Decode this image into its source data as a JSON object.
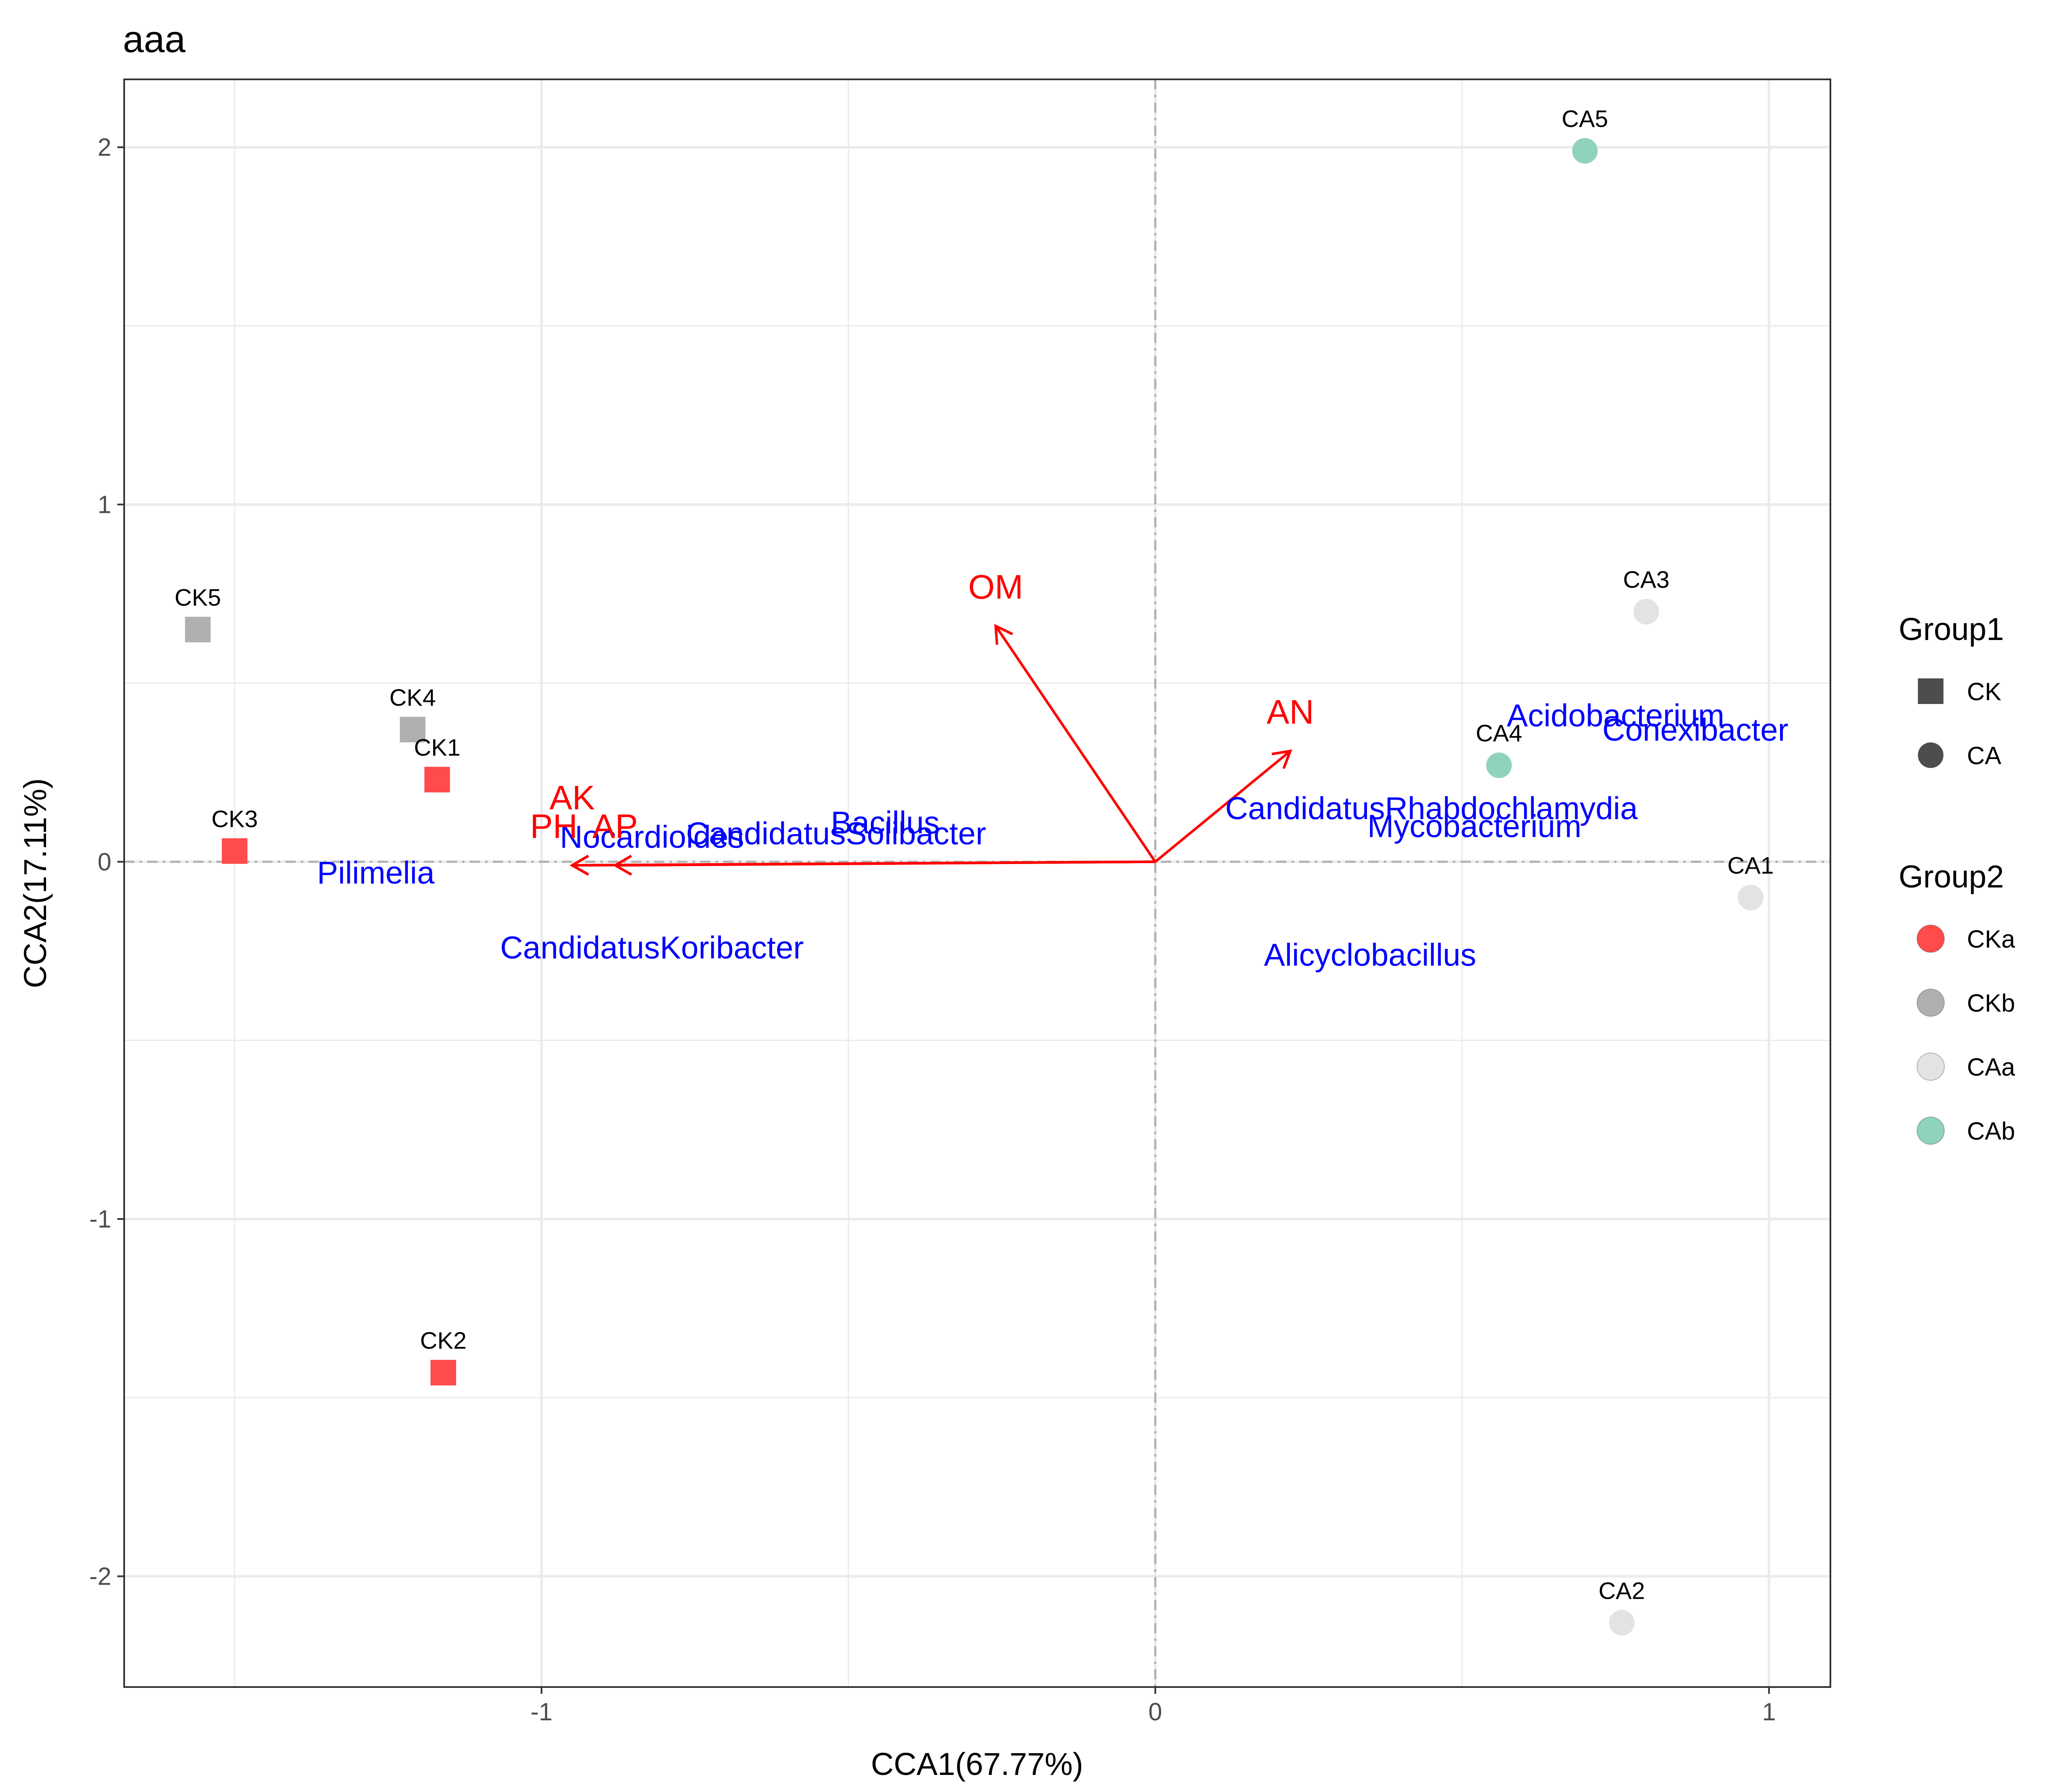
{
  "chart_data": {
    "type": "scatter",
    "title": "aaa",
    "xlabel": "CCA1(67.77%)",
    "ylabel": "CCA2(17.11%)",
    "xlim": [
      -1.68,
      1.1
    ],
    "ylim": [
      -2.31,
      2.19
    ],
    "xticks": [
      -1,
      0,
      1
    ],
    "xtick_labels": [
      "-1",
      "0",
      "1"
    ],
    "yticks": [
      -2,
      -1,
      0,
      1,
      2
    ],
    "ytick_labels": [
      "-2",
      "-1",
      "0",
      "1",
      "2"
    ],
    "grid": true,
    "reference_lines": {
      "x": 0,
      "y": 0,
      "style": "dashed"
    },
    "legend_placement": "right",
    "legends": [
      {
        "title": "Group1",
        "kind": "shape",
        "entries": [
          {
            "label": "CK",
            "shape": "square"
          },
          {
            "label": "CA",
            "shape": "circle"
          }
        ]
      },
      {
        "title": "Group2",
        "kind": "color",
        "entries": [
          {
            "label": "CKa",
            "color": "#ff4b4b"
          },
          {
            "label": "CKb",
            "color": "#b0b0b0"
          },
          {
            "label": "CAa",
            "color": "#e3e3e3"
          },
          {
            "label": "CAb",
            "color": "#8fd3bf"
          }
        ]
      }
    ],
    "sites": [
      {
        "label": "CK5",
        "x": -1.56,
        "y": 0.65,
        "group1": "CK",
        "group2": "CKb"
      },
      {
        "label": "CK4",
        "x": -1.21,
        "y": 0.37,
        "group1": "CK",
        "group2": "CKb"
      },
      {
        "label": "CK1",
        "x": -1.17,
        "y": 0.23,
        "group1": "CK",
        "group2": "CKa"
      },
      {
        "label": "CK3",
        "x": -1.5,
        "y": 0.03,
        "group1": "CK",
        "group2": "CKa"
      },
      {
        "label": "CK2",
        "x": -1.16,
        "y": -1.43,
        "group1": "CK",
        "group2": "CKa"
      },
      {
        "label": "CA5",
        "x": 0.7,
        "y": 1.99,
        "group1": "CA",
        "group2": "CAb"
      },
      {
        "label": "CA3",
        "x": 0.8,
        "y": 0.7,
        "group1": "CA",
        "group2": "CAa"
      },
      {
        "label": "CA4",
        "x": 0.56,
        "y": 0.27,
        "group1": "CA",
        "group2": "CAb"
      },
      {
        "label": "CA1",
        "x": 0.97,
        "y": -0.1,
        "group1": "CA",
        "group2": "CAa"
      },
      {
        "label": "CA2",
        "x": 0.76,
        "y": -2.13,
        "group1": "CA",
        "group2": "CAa"
      }
    ],
    "species": [
      {
        "label": "Acidobacterium",
        "x": 0.75,
        "y": 0.41
      },
      {
        "label": "Conexibacter",
        "x": 0.88,
        "y": 0.37
      },
      {
        "label": "CandidatusRhabdochlamydia",
        "x": 0.45,
        "y": 0.15
      },
      {
        "label": "Mycobacterium",
        "x": 0.52,
        "y": 0.1
      },
      {
        "label": "Bacillus",
        "x": -0.44,
        "y": 0.11
      },
      {
        "label": "CandidatusSolibacter",
        "x": -0.52,
        "y": 0.08
      },
      {
        "label": "Nocardioides",
        "x": -0.82,
        "y": 0.07
      },
      {
        "label": "Pilimelia",
        "x": -1.27,
        "y": -0.03
      },
      {
        "label": "CandidatusKoribacter",
        "x": -0.82,
        "y": -0.24
      },
      {
        "label": "Alicyclobacillus",
        "x": 0.35,
        "y": -0.26
      }
    ],
    "env_vectors": [
      {
        "label": "OM",
        "x": -0.26,
        "y": 0.66,
        "label_x": -0.26,
        "label_y": 0.77
      },
      {
        "label": "AN",
        "x": 0.22,
        "y": 0.31,
        "label_x": 0.22,
        "label_y": 0.42
      },
      {
        "label": "AK",
        "x": -0.95,
        "y": -0.01,
        "label_x": -0.95,
        "label_y": 0.18
      },
      {
        "label": "PH",
        "x": -0.95,
        "y": -0.01,
        "label_x": -0.98,
        "label_y": 0.1
      },
      {
        "label": "AP",
        "x": -0.88,
        "y": -0.01,
        "label_x": -0.88,
        "label_y": 0.1
      }
    ],
    "colors": {
      "env": "#ff0000",
      "species": "#0000ff",
      "grid": "#ebebeb",
      "ref_line": "#b3b3b3"
    }
  }
}
